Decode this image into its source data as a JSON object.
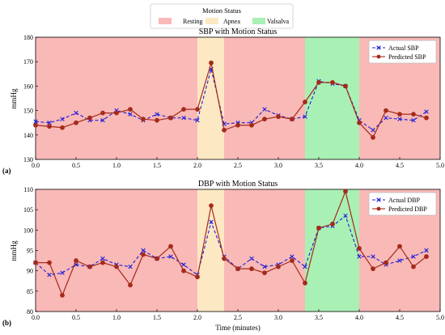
{
  "legend_status": {
    "title": "Motion Status",
    "items": [
      {
        "label": "Resting",
        "color": "#f9b9b7"
      },
      {
        "label": "Apnea",
        "color": "#fde8c4"
      },
      {
        "label": "Valsalva",
        "color": "#a9f0b5"
      }
    ]
  },
  "colors": {
    "actual": "#1f1fd6",
    "predicted": "#a52a1a"
  },
  "panel_labels": [
    "(a)",
    "(b)"
  ],
  "shared_xlabel": "Time (minutes)",
  "chart_data": [
    {
      "type": "line",
      "title": "SBP with Motion Status",
      "xlabel": "",
      "ylabel": "mmHg",
      "xlim": [
        0,
        5
      ],
      "ylim": [
        130,
        180
      ],
      "xticks": [
        "0.0",
        "0.5",
        "1.0",
        "1.5",
        "2.0",
        "2.5",
        "3.0",
        "3.5",
        "4.0",
        "4.5",
        "5.0"
      ],
      "yticks": [
        "130",
        "140",
        "150",
        "160",
        "170",
        "180"
      ],
      "legend_position": "top-right",
      "status_regions": [
        {
          "status": "Resting",
          "x": [
            0,
            2.0
          ]
        },
        {
          "status": "Apnea",
          "x": [
            2.0,
            2.33
          ]
        },
        {
          "status": "Resting",
          "x": [
            2.33,
            3.33
          ]
        },
        {
          "status": "Valsalva",
          "x": [
            3.33,
            4.0
          ]
        },
        {
          "status": "Resting",
          "x": [
            4.0,
            5.0
          ]
        }
      ],
      "x": [
        0.0,
        0.17,
        0.33,
        0.5,
        0.67,
        0.83,
        1.0,
        1.17,
        1.33,
        1.5,
        1.67,
        1.83,
        2.0,
        2.17,
        2.33,
        2.5,
        2.67,
        2.83,
        3.0,
        3.17,
        3.33,
        3.5,
        3.67,
        3.83,
        4.0,
        4.17,
        4.33,
        4.5,
        4.67,
        4.83
      ],
      "series": [
        {
          "name": "Actual SBP",
          "marker": "x",
          "style": "dashed",
          "values": [
            145.5,
            145,
            146.5,
            149,
            146,
            146,
            150,
            148.5,
            146,
            148.5,
            147,
            147,
            146,
            167,
            144.5,
            145,
            145,
            150.5,
            148,
            146.5,
            147.5,
            162,
            161,
            160,
            146,
            142,
            147,
            146.5,
            146,
            149.5
          ]
        },
        {
          "name": "Predicted SBP",
          "marker": "circle",
          "style": "solid",
          "values": [
            144,
            143.5,
            143,
            145,
            147,
            149,
            149,
            150.5,
            146.5,
            146,
            147,
            150.5,
            150.5,
            169.5,
            142,
            144,
            144,
            146.5,
            147.5,
            146.5,
            153.5,
            161.5,
            161.5,
            160,
            145,
            139,
            150,
            148.5,
            148.5,
            147
          ]
        }
      ]
    },
    {
      "type": "line",
      "title": "DBP with Motion Status",
      "xlabel": "Time (minutes)",
      "ylabel": "mmHg",
      "xlim": [
        0,
        5
      ],
      "ylim": [
        80,
        110
      ],
      "xticks": [
        "0.0",
        "0.5",
        "1.0",
        "1.5",
        "2.0",
        "2.5",
        "3.0",
        "3.5",
        "4.0",
        "4.5",
        "5.0"
      ],
      "yticks": [
        "80",
        "85",
        "90",
        "95",
        "100",
        "105",
        "110"
      ],
      "legend_position": "top-right",
      "status_regions": [
        {
          "status": "Resting",
          "x": [
            0,
            2.0
          ]
        },
        {
          "status": "Apnea",
          "x": [
            2.0,
            2.33
          ]
        },
        {
          "status": "Resting",
          "x": [
            2.33,
            3.33
          ]
        },
        {
          "status": "Valsalva",
          "x": [
            3.33,
            4.0
          ]
        },
        {
          "status": "Resting",
          "x": [
            4.0,
            5.0
          ]
        }
      ],
      "x": [
        0.0,
        0.17,
        0.33,
        0.5,
        0.67,
        0.83,
        1.0,
        1.17,
        1.33,
        1.5,
        1.67,
        1.83,
        2.0,
        2.17,
        2.33,
        2.5,
        2.67,
        2.83,
        3.0,
        3.17,
        3.33,
        3.5,
        3.67,
        3.83,
        4.0,
        4.17,
        4.33,
        4.5,
        4.67,
        4.83
      ],
      "series": [
        {
          "name": "Actual DBP",
          "marker": "x",
          "style": "dashed",
          "values": [
            92,
            89,
            89.5,
            91.5,
            91,
            93,
            91.5,
            91,
            95,
            93,
            93.5,
            91.5,
            89,
            102,
            93.5,
            90.5,
            93,
            91,
            91.5,
            93.5,
            91,
            100.5,
            101,
            103.5,
            93.5,
            93.5,
            91.5,
            92.5,
            93.5,
            95
          ]
        },
        {
          "name": "Predicted DBP",
          "marker": "circle",
          "style": "solid",
          "values": [
            92,
            92,
            84,
            92.5,
            91,
            92,
            91,
            86.5,
            94,
            93,
            96,
            90,
            88.5,
            106,
            93,
            90.5,
            90.5,
            89.5,
            91,
            92.5,
            87,
            100.5,
            101.5,
            109.5,
            95.5,
            90.5,
            92,
            96,
            91,
            93.5
          ]
        }
      ]
    }
  ]
}
